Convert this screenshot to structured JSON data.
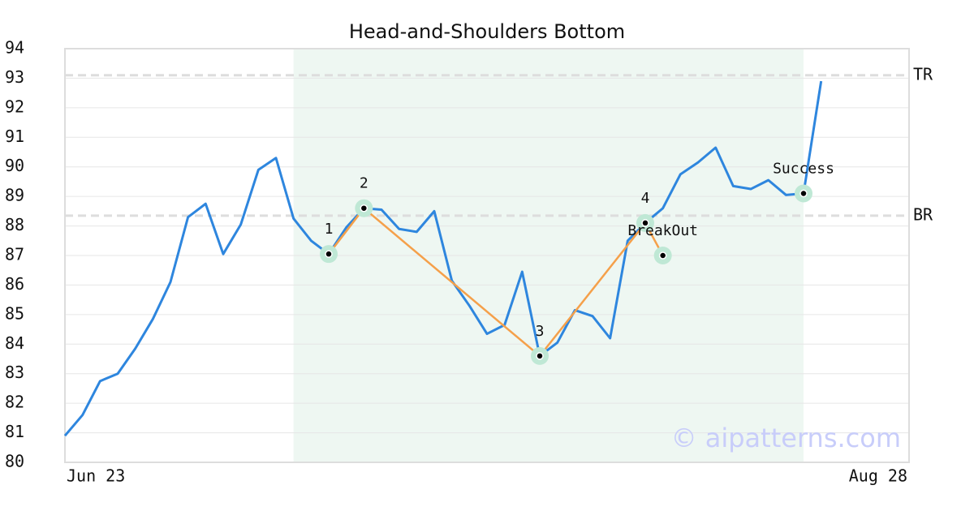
{
  "chart_data": {
    "type": "line",
    "title": "Head-and-Shoulders Bottom",
    "categories": [
      "Jun 23",
      null,
      null,
      null,
      null,
      null,
      null,
      null,
      null,
      null,
      null,
      null,
      null,
      null,
      null,
      null,
      null,
      null,
      null,
      null,
      null,
      null,
      null,
      null,
      null,
      null,
      null,
      null,
      null,
      null,
      null,
      null,
      null,
      null,
      null,
      null,
      null,
      null,
      null,
      null,
      null,
      null,
      null,
      null,
      null,
      null,
      null,
      null,
      "Aug 28"
    ],
    "series": [
      {
        "color": "#2e86de",
        "values": [
          80.9,
          81.6,
          82.75,
          83.0,
          83.85,
          84.85,
          86.1,
          88.3,
          88.75,
          87.05,
          88.05,
          89.9,
          90.3,
          88.25,
          87.5,
          87.05,
          87.95,
          88.6,
          88.55,
          87.9,
          87.8,
          88.5,
          86.15,
          85.3,
          84.35,
          84.65,
          86.45,
          83.6,
          84.05,
          85.15,
          84.95,
          84.2,
          87.5,
          88.1,
          88.6,
          89.75,
          90.15,
          90.65,
          89.35,
          89.25,
          89.55,
          89.05,
          89.1,
          92.9,
          null,
          null,
          null,
          null,
          null
        ]
      }
    ],
    "xlim": [
      0,
      48
    ],
    "ylim": [
      80,
      94
    ],
    "yticks": [
      80,
      81,
      82,
      83,
      84,
      85,
      86,
      87,
      88,
      89,
      90,
      91,
      92,
      93,
      94
    ],
    "grid": true,
    "highlight": {
      "xlim": [
        13,
        42
      ],
      "color": "#eef7f2"
    },
    "pattern": {
      "color": "#f5a04a",
      "points": [
        {
          "label": "1",
          "x": 15,
          "y": 87.05
        },
        {
          "label": "2",
          "x": 17,
          "y": 88.6
        },
        {
          "label": "3",
          "x": 27,
          "y": 83.6
        },
        {
          "label": "4",
          "x": 33,
          "y": 88.1
        },
        {
          "label": "BreakOut",
          "x": 34,
          "y": 87.0
        }
      ]
    },
    "success": {
      "label": "Success",
      "x": 42,
      "y": 89.1
    },
    "levels": [
      {
        "label": "TR",
        "value": 93.1
      },
      {
        "label": "BR",
        "value": 88.35
      }
    ],
    "watermark": "© aipatterns.com"
  }
}
